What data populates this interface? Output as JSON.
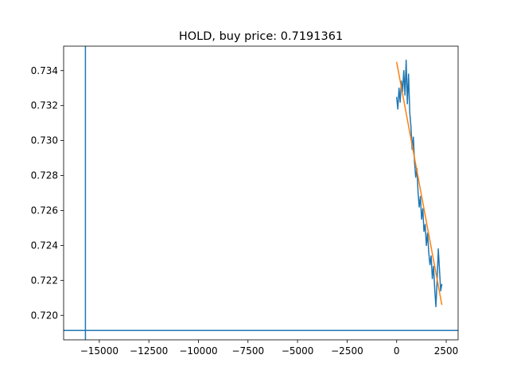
{
  "chart_data": {
    "type": "line",
    "title": "HOLD, buy price: 0.7191361",
    "xlabel": "",
    "ylabel": "",
    "xlim": [
      -16800,
      3100
    ],
    "ylim": [
      0.7186,
      0.7354
    ],
    "xticks": [
      -15000,
      -12500,
      -10000,
      -7500,
      -5000,
      -2500,
      0,
      2500
    ],
    "xtick_labels": [
      "−15000",
      "−12500",
      "−10000",
      "−7500",
      "−5000",
      "−2500",
      "0",
      "2500"
    ],
    "yticks": [
      0.72,
      0.722,
      0.724,
      0.726,
      0.728,
      0.73,
      0.732,
      0.734
    ],
    "ytick_labels": [
      "0.720",
      "0.722",
      "0.724",
      "0.726",
      "0.728",
      "0.730",
      "0.732",
      "0.734"
    ],
    "grid": false,
    "series": [
      {
        "color": "#1f77b4",
        "x": [
          0,
          60,
          120,
          180,
          240,
          300,
          360,
          420,
          480,
          540,
          600,
          660,
          720,
          780,
          840,
          900,
          960,
          1020,
          1080,
          1140,
          1200,
          1260,
          1320,
          1380,
          1440,
          1500,
          1560,
          1620,
          1680,
          1740,
          1800,
          1860,
          1920,
          1980,
          2040,
          2100,
          2160,
          2220,
          2280
        ],
        "y": [
          0.7325,
          0.7318,
          0.733,
          0.7322,
          0.7334,
          0.7328,
          0.734,
          0.7326,
          0.7346,
          0.7321,
          0.7338,
          0.7316,
          0.7308,
          0.7295,
          0.7302,
          0.7288,
          0.7279,
          0.7284,
          0.727,
          0.7262,
          0.7268,
          0.7255,
          0.7261,
          0.7248,
          0.7252,
          0.724,
          0.7247,
          0.7236,
          0.7229,
          0.7234,
          0.7221,
          0.7228,
          0.7215,
          0.7205,
          0.722,
          0.7238,
          0.7226,
          0.7214,
          0.7218
        ]
      },
      {
        "color": "#ff7f0e",
        "x": [
          0,
          2280
        ],
        "y": [
          0.7345,
          0.7206
        ]
      },
      {
        "color": "#1f77b4",
        "orientation": "vertical",
        "x": -15700
      },
      {
        "color": "#1f77b4",
        "orientation": "horizontal",
        "y": 0.7191361
      }
    ]
  }
}
